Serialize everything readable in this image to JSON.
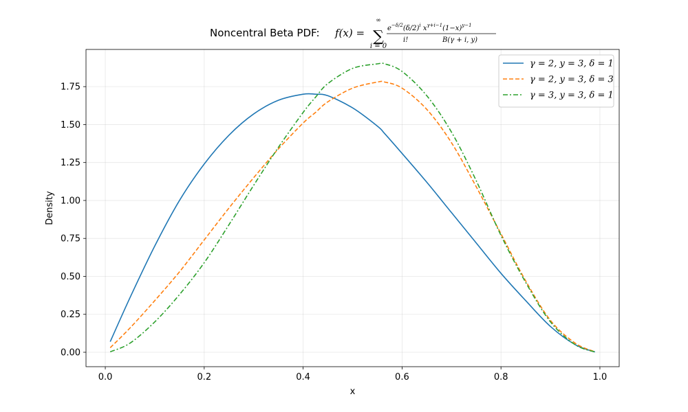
{
  "chart_data": {
    "type": "line",
    "title": {
      "prefix": "Noncentral Beta PDF: ",
      "lhs": "f(x) = ",
      "sum_upper": "∞",
      "sum_lower": "i = 0",
      "numerator": "e^{−δ/2}(δ/2)^i x^{γ+i−1}(1−x)^{y−1}",
      "num_rendered": {
        "e": "e",
        "e_exp": "−δ/2",
        "mid": "(δ/2)",
        "i_exp": "i",
        "x": " x",
        "x_exp": "γ+i−1",
        "tail": "(1−x)",
        "tail_exp": "y−1"
      },
      "den_left": "i!",
      "den_right": "B(γ + i, y)"
    },
    "xlabel": "x",
    "ylabel": "Density",
    "xlim": [
      -0.039,
      1.039
    ],
    "ylim": [
      -0.095,
      1.995
    ],
    "xticks": [
      "0.0",
      "0.2",
      "0.4",
      "0.6",
      "0.8",
      "1.0"
    ],
    "yticks": [
      "0.00",
      "0.25",
      "0.50",
      "0.75",
      "1.00",
      "1.25",
      "1.50",
      "1.75"
    ],
    "grid": true,
    "legend_position": "top-right",
    "x": [
      0.01,
      0.05,
      0.1,
      0.15,
      0.2,
      0.25,
      0.3,
      0.35,
      0.4,
      0.425,
      0.45,
      0.5,
      0.55,
      0.565,
      0.6,
      0.65,
      0.7,
      0.75,
      0.8,
      0.85,
      0.9,
      0.95,
      0.99
    ],
    "series": [
      {
        "name": "γ = 2, y = 3, δ = 1",
        "color": "#1f77b4",
        "dash": "solid",
        "values": [
          0.07,
          0.36,
          0.7,
          1.0,
          1.24,
          1.43,
          1.57,
          1.66,
          1.7,
          1.7,
          1.69,
          1.61,
          1.49,
          1.44,
          1.31,
          1.12,
          0.92,
          0.72,
          0.52,
          0.34,
          0.17,
          0.05,
          0.002
        ]
      },
      {
        "name": "γ = 2, y = 3, δ = 3",
        "color": "#ff7f0e",
        "dash": "dashed",
        "values": [
          0.03,
          0.16,
          0.34,
          0.53,
          0.74,
          0.95,
          1.15,
          1.34,
          1.51,
          1.58,
          1.65,
          1.74,
          1.78,
          1.78,
          1.74,
          1.6,
          1.38,
          1.09,
          0.78,
          0.47,
          0.21,
          0.06,
          0.003
        ]
      },
      {
        "name": "γ = 3, y = 3, δ = 1",
        "color": "#2ca02c",
        "dash": "dashdot",
        "values": [
          0.003,
          0.06,
          0.2,
          0.38,
          0.59,
          0.84,
          1.1,
          1.35,
          1.58,
          1.68,
          1.77,
          1.87,
          1.9,
          1.9,
          1.85,
          1.69,
          1.45,
          1.13,
          0.77,
          0.46,
          0.2,
          0.05,
          0.002
        ]
      }
    ]
  }
}
